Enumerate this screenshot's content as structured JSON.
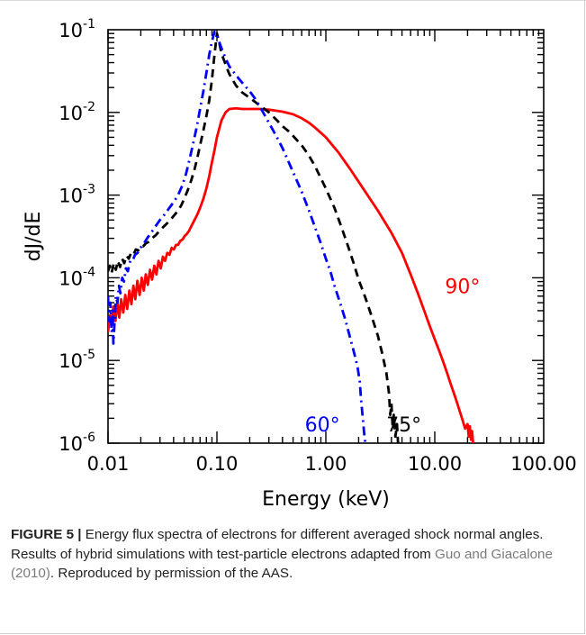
{
  "chart_data": {
    "type": "line",
    "xscale": "log",
    "yscale": "log",
    "xlabel": "Energy (keV)",
    "ylabel": "dJ/dE",
    "xlim": [
      0.01,
      100
    ],
    "ylim": [
      1e-06,
      0.1
    ],
    "x_ticks": [
      {
        "value": 0.01,
        "label": "0.01"
      },
      {
        "value": 0.1,
        "label": "0.10"
      },
      {
        "value": 1,
        "label": "1.00"
      },
      {
        "value": 10,
        "label": "10.00"
      },
      {
        "value": 100,
        "label": "100.00"
      }
    ],
    "y_ticks": [
      {
        "value": 0.1,
        "base": "10",
        "exp": "-1"
      },
      {
        "value": 0.01,
        "base": "10",
        "exp": "-2"
      },
      {
        "value": 0.001,
        "base": "10",
        "exp": "-3"
      },
      {
        "value": 0.0001,
        "base": "10",
        "exp": "-4"
      },
      {
        "value": 1e-05,
        "base": "10",
        "exp": "-5"
      },
      {
        "value": 1e-06,
        "base": "10",
        "exp": "-6"
      }
    ],
    "series": [
      {
        "name": "90°",
        "color": "#ff0000",
        "dash": "solid",
        "points": [
          [
            0.01,
            2.2e-05
          ],
          [
            0.0104,
            3.5e-05
          ],
          [
            0.0108,
            2.8e-05
          ],
          [
            0.0112,
            4.5e-05
          ],
          [
            0.0117,
            3e-05
          ],
          [
            0.0122,
            5e-05
          ],
          [
            0.0127,
            3.3e-05
          ],
          [
            0.0132,
            5.5e-05
          ],
          [
            0.0138,
            3.8e-05
          ],
          [
            0.0144,
            6.2e-05
          ],
          [
            0.015,
            4.2e-05
          ],
          [
            0.0157,
            7e-05
          ],
          [
            0.0164,
            4.8e-05
          ],
          [
            0.0171,
            8e-05
          ],
          [
            0.0178,
            5.5e-05
          ],
          [
            0.0186,
            9.2e-05
          ],
          [
            0.0195,
            6.2e-05
          ],
          [
            0.0204,
            0.0001
          ],
          [
            0.0213,
            7e-05
          ],
          [
            0.0222,
            0.00011
          ],
          [
            0.0232,
            8.2e-05
          ],
          [
            0.0243,
            0.000125
          ],
          [
            0.0254,
            9.5e-05
          ],
          [
            0.0266,
            0.00014
          ],
          [
            0.0278,
            0.00011
          ],
          [
            0.0291,
            0.00016
          ],
          [
            0.0305,
            0.00013
          ],
          [
            0.0319,
            0.00018
          ],
          [
            0.0334,
            0.00016
          ],
          [
            0.035,
            0.0002
          ],
          [
            0.0367,
            0.00019
          ],
          [
            0.0384,
            0.00023
          ],
          [
            0.0402,
            0.00022
          ],
          [
            0.0421,
            0.00025
          ],
          [
            0.044,
            0.00025
          ],
          [
            0.0461,
            0.00028
          ],
          [
            0.0483,
            0.00029
          ],
          [
            0.0506,
            0.00032
          ],
          [
            0.053,
            0.00034
          ],
          [
            0.0555,
            0.00037
          ],
          [
            0.0581,
            0.00042
          ],
          [
            0.0608,
            0.00047
          ],
          [
            0.0637,
            0.00053
          ],
          [
            0.0667,
            0.0006
          ],
          [
            0.07,
            0.0007
          ],
          [
            0.075,
            0.0009
          ],
          [
            0.08,
            0.0012
          ],
          [
            0.085,
            0.0017
          ],
          [
            0.09,
            0.0025
          ],
          [
            0.095,
            0.0035
          ],
          [
            0.1,
            0.005
          ],
          [
            0.11,
            0.008
          ],
          [
            0.12,
            0.01
          ],
          [
            0.13,
            0.011
          ],
          [
            0.15,
            0.0112
          ],
          [
            0.17,
            0.011
          ],
          [
            0.2,
            0.011
          ],
          [
            0.25,
            0.011
          ],
          [
            0.3,
            0.0108
          ],
          [
            0.4,
            0.0102
          ],
          [
            0.5,
            0.0095
          ],
          [
            0.6,
            0.0085
          ],
          [
            0.7,
            0.0075
          ],
          [
            0.8,
            0.0065
          ],
          [
            1.0,
            0.005
          ],
          [
            1.3,
            0.0033
          ],
          [
            1.7,
            0.002
          ],
          [
            2.2,
            0.0012
          ],
          [
            3.0,
            0.00065
          ],
          [
            4.0,
            0.00035
          ],
          [
            5.0,
            0.0002
          ],
          [
            6.0,
            0.00011
          ],
          [
            7.0,
            6.5e-05
          ],
          [
            8.0,
            4e-05
          ],
          [
            9.0,
            2.6e-05
          ],
          [
            10.0,
            1.8e-05
          ],
          [
            11.0,
            1.3e-05
          ],
          [
            12.0,
            9.5e-06
          ],
          [
            13.0,
            7e-06
          ],
          [
            14.0,
            5.2e-06
          ],
          [
            15.0,
            4e-06
          ],
          [
            16.0,
            3.1e-06
          ],
          [
            17.0,
            2.4e-06
          ],
          [
            18.0,
            1.9e-06
          ],
          [
            19.0,
            1.5e-06
          ],
          [
            20.0,
            1.7e-06
          ],
          [
            20.5,
            1.2e-06
          ],
          [
            21.0,
            1.6e-06
          ],
          [
            21.5,
            1.1e-06
          ],
          [
            22.0,
            1.4e-06
          ],
          [
            22.5,
            1e-06
          ]
        ]
      },
      {
        "name": "75°",
        "color": "#000000",
        "dash": "dashed",
        "points": [
          [
            0.01,
            0.00012
          ],
          [
            0.0104,
            0.00014
          ],
          [
            0.0108,
            0.000115
          ],
          [
            0.0113,
            0.00015
          ],
          [
            0.0118,
            0.000125
          ],
          [
            0.0123,
            0.00016
          ],
          [
            0.0129,
            0.000135
          ],
          [
            0.0135,
            0.00017
          ],
          [
            0.0141,
            0.00015
          ],
          [
            0.0148,
            0.000185
          ],
          [
            0.0155,
            0.00017
          ],
          [
            0.0163,
            0.0002
          ],
          [
            0.0171,
            0.00019
          ],
          [
            0.018,
            0.00022
          ],
          [
            0.019,
            0.000215
          ],
          [
            0.02,
            0.00024
          ],
          [
            0.021,
            0.00024
          ],
          [
            0.0222,
            0.00026
          ],
          [
            0.0234,
            0.00027
          ],
          [
            0.0247,
            0.00029
          ],
          [
            0.0261,
            0.00031
          ],
          [
            0.0276,
            0.00033
          ],
          [
            0.0292,
            0.00036
          ],
          [
            0.0309,
            0.00039
          ],
          [
            0.0327,
            0.00042
          ],
          [
            0.0346,
            0.00045
          ],
          [
            0.0366,
            0.00049
          ],
          [
            0.0387,
            0.00053
          ],
          [
            0.041,
            0.00058
          ],
          [
            0.044,
            0.00065
          ],
          [
            0.047,
            0.00075
          ],
          [
            0.05,
            0.0009
          ],
          [
            0.054,
            0.00115
          ],
          [
            0.058,
            0.0015
          ],
          [
            0.062,
            0.002
          ],
          [
            0.066,
            0.0028
          ],
          [
            0.07,
            0.004
          ],
          [
            0.075,
            0.006
          ],
          [
            0.08,
            0.009
          ],
          [
            0.085,
            0.014
          ],
          [
            0.09,
            0.025
          ],
          [
            0.095,
            0.05
          ],
          [
            0.1,
            0.09
          ],
          [
            0.105,
            0.07
          ],
          [
            0.11,
            0.052
          ],
          [
            0.12,
            0.038
          ],
          [
            0.13,
            0.029
          ],
          [
            0.15,
            0.021
          ],
          [
            0.17,
            0.0175
          ],
          [
            0.2,
            0.015
          ],
          [
            0.25,
            0.012
          ],
          [
            0.3,
            0.01
          ],
          [
            0.35,
            0.0082
          ],
          [
            0.4,
            0.0068
          ],
          [
            0.45,
            0.006
          ],
          [
            0.5,
            0.0052
          ],
          [
            0.6,
            0.004
          ],
          [
            0.7,
            0.003
          ],
          [
            0.8,
            0.0022
          ],
          [
            0.9,
            0.0016
          ],
          [
            1.0,
            0.0012
          ],
          [
            1.2,
            0.0007
          ],
          [
            1.4,
            0.0004
          ],
          [
            1.6,
            0.00024
          ],
          [
            1.8,
            0.00015
          ],
          [
            2.0,
            9.5e-05
          ],
          [
            2.3,
            5.8e-05
          ],
          [
            2.6,
            3.6e-05
          ],
          [
            3.0,
            2e-05
          ],
          [
            3.3,
            1.2e-05
          ],
          [
            3.6,
            7e-06
          ],
          [
            3.8,
            4e-06
          ],
          [
            3.9,
            2.2e-06
          ],
          [
            4.0,
            3e-06
          ],
          [
            4.1,
            1.6e-06
          ],
          [
            4.2,
            2.2e-06
          ],
          [
            4.35,
            1.2e-06
          ],
          [
            4.5,
            1.7e-06
          ],
          [
            4.6,
            1e-06
          ]
        ]
      },
      {
        "name": "60°",
        "color": "#0000ff",
        "dash": "dashdot",
        "points": [
          [
            0.01,
            6e-05
          ],
          [
            0.0102,
            3e-05
          ],
          [
            0.0105,
            5e-05
          ],
          [
            0.0108,
            2.2e-05
          ],
          [
            0.011,
            4e-05
          ],
          [
            0.0112,
            1.6e-05
          ],
          [
            0.0115,
            3e-05
          ],
          [
            0.0118,
            6e-05
          ],
          [
            0.0122,
            5e-05
          ],
          [
            0.0126,
            8e-05
          ],
          [
            0.013,
            6.5e-05
          ],
          [
            0.0135,
            0.0001
          ],
          [
            0.014,
            9e-05
          ],
          [
            0.0146,
            0.00013
          ],
          [
            0.0152,
            0.00012
          ],
          [
            0.016,
            0.00016
          ],
          [
            0.0168,
            0.00016
          ],
          [
            0.0177,
            0.00019
          ],
          [
            0.0187,
            0.0002
          ],
          [
            0.0198,
            0.00023
          ],
          [
            0.021,
            0.00025
          ],
          [
            0.0225,
            0.00029
          ],
          [
            0.024,
            0.00033
          ],
          [
            0.026,
            0.00038
          ],
          [
            0.028,
            0.00044
          ],
          [
            0.03,
            0.0005
          ],
          [
            0.033,
            0.00058
          ],
          [
            0.036,
            0.00068
          ],
          [
            0.04,
            0.00082
          ],
          [
            0.044,
            0.001
          ],
          [
            0.048,
            0.0013
          ],
          [
            0.052,
            0.0018
          ],
          [
            0.056,
            0.0027
          ],
          [
            0.06,
            0.004
          ],
          [
            0.065,
            0.0065
          ],
          [
            0.07,
            0.011
          ],
          [
            0.075,
            0.018
          ],
          [
            0.08,
            0.03
          ],
          [
            0.085,
            0.05
          ],
          [
            0.09,
            0.072
          ],
          [
            0.095,
            0.095
          ],
          [
            0.1,
            0.085
          ],
          [
            0.11,
            0.06
          ],
          [
            0.12,
            0.045
          ],
          [
            0.13,
            0.036
          ],
          [
            0.15,
            0.028
          ],
          [
            0.17,
            0.023
          ],
          [
            0.2,
            0.018
          ],
          [
            0.23,
            0.014
          ],
          [
            0.26,
            0.0105
          ],
          [
            0.3,
            0.0075
          ],
          [
            0.35,
            0.0052
          ],
          [
            0.4,
            0.0037
          ],
          [
            0.45,
            0.0026
          ],
          [
            0.5,
            0.0019
          ],
          [
            0.6,
            0.0011
          ],
          [
            0.7,
            0.00065
          ],
          [
            0.8,
            0.0004
          ],
          [
            0.9,
            0.00026
          ],
          [
            1.0,
            0.00017
          ],
          [
            1.1,
            0.00012
          ],
          [
            1.2,
            8e-05
          ],
          [
            1.35,
            5e-05
          ],
          [
            1.5,
            3.2e-05
          ],
          [
            1.65,
            2e-05
          ],
          [
            1.8,
            1.3e-05
          ],
          [
            1.95,
            8.5e-06
          ],
          [
            2.05,
            5.5e-06
          ],
          [
            2.1,
            3.5e-06
          ],
          [
            2.15,
            2.5e-06
          ],
          [
            2.2,
            1.8e-06
          ],
          [
            2.25,
            1.3e-06
          ],
          [
            2.3,
            1e-06
          ]
        ]
      }
    ],
    "annotations": [
      {
        "text": "90°",
        "series": "90°",
        "x": 18.0,
        "y": 8e-05
      },
      {
        "text": "75°",
        "series": "75°",
        "x": 5.2,
        "y": 1.7e-06
      },
      {
        "text": "60°",
        "series": "60°",
        "x": 0.93,
        "y": 1.7e-06
      }
    ]
  },
  "caption": {
    "label": "FIGURE 5 |",
    "text_before_ref": " Energy flux spectra of electrons for different averaged shock normal angles. Results of hybrid simulations with test-particle electrons adapted from ",
    "ref": "Guo and Giacalone (2010)",
    "text_after_ref": ". Reproduced by permission of the AAS."
  }
}
